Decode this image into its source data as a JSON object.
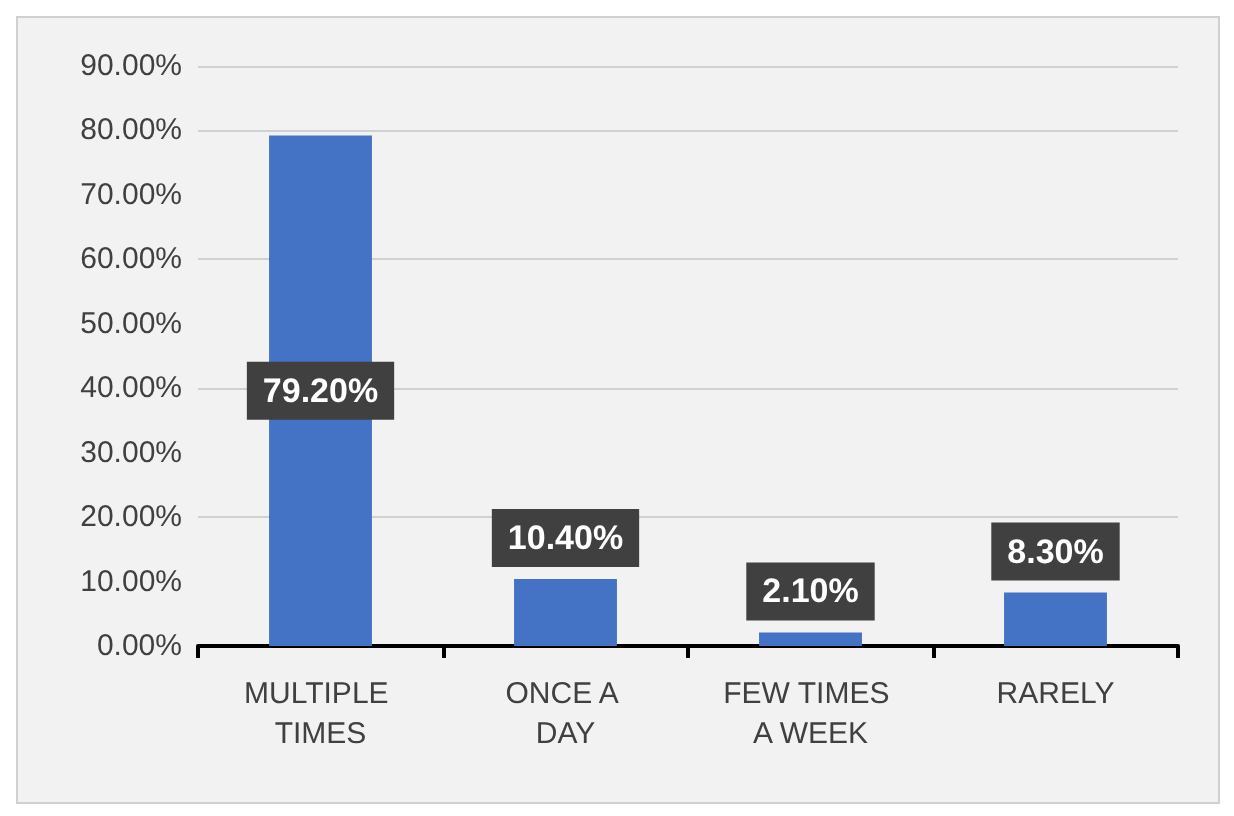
{
  "chart_data": {
    "type": "bar",
    "categories": [
      "MULTIPLE TIMES",
      "ONCE A DAY",
      "FEW TIMES A WEEK",
      "RARELY"
    ],
    "values": [
      79.2,
      10.4,
      2.1,
      8.3
    ],
    "value_labels": [
      "79.20%",
      "10.40%",
      "2.10%",
      "8.30%"
    ],
    "color": "#4472c4",
    "ylim": [
      0,
      90
    ],
    "yticks": [
      {
        "value": 0,
        "label": "0.00%"
      },
      {
        "value": 10,
        "label": "10.00%"
      },
      {
        "value": 20,
        "label": "20.00%"
      },
      {
        "value": 30,
        "label": "30.00%"
      },
      {
        "value": 40,
        "label": "40.00%"
      },
      {
        "value": 50,
        "label": "50.00%"
      },
      {
        "value": 60,
        "label": "60.00%"
      },
      {
        "value": 70,
        "label": "70.00%"
      },
      {
        "value": 80,
        "label": "80.00%"
      },
      {
        "value": 90,
        "label": "90.00%"
      }
    ],
    "grid": true
  }
}
